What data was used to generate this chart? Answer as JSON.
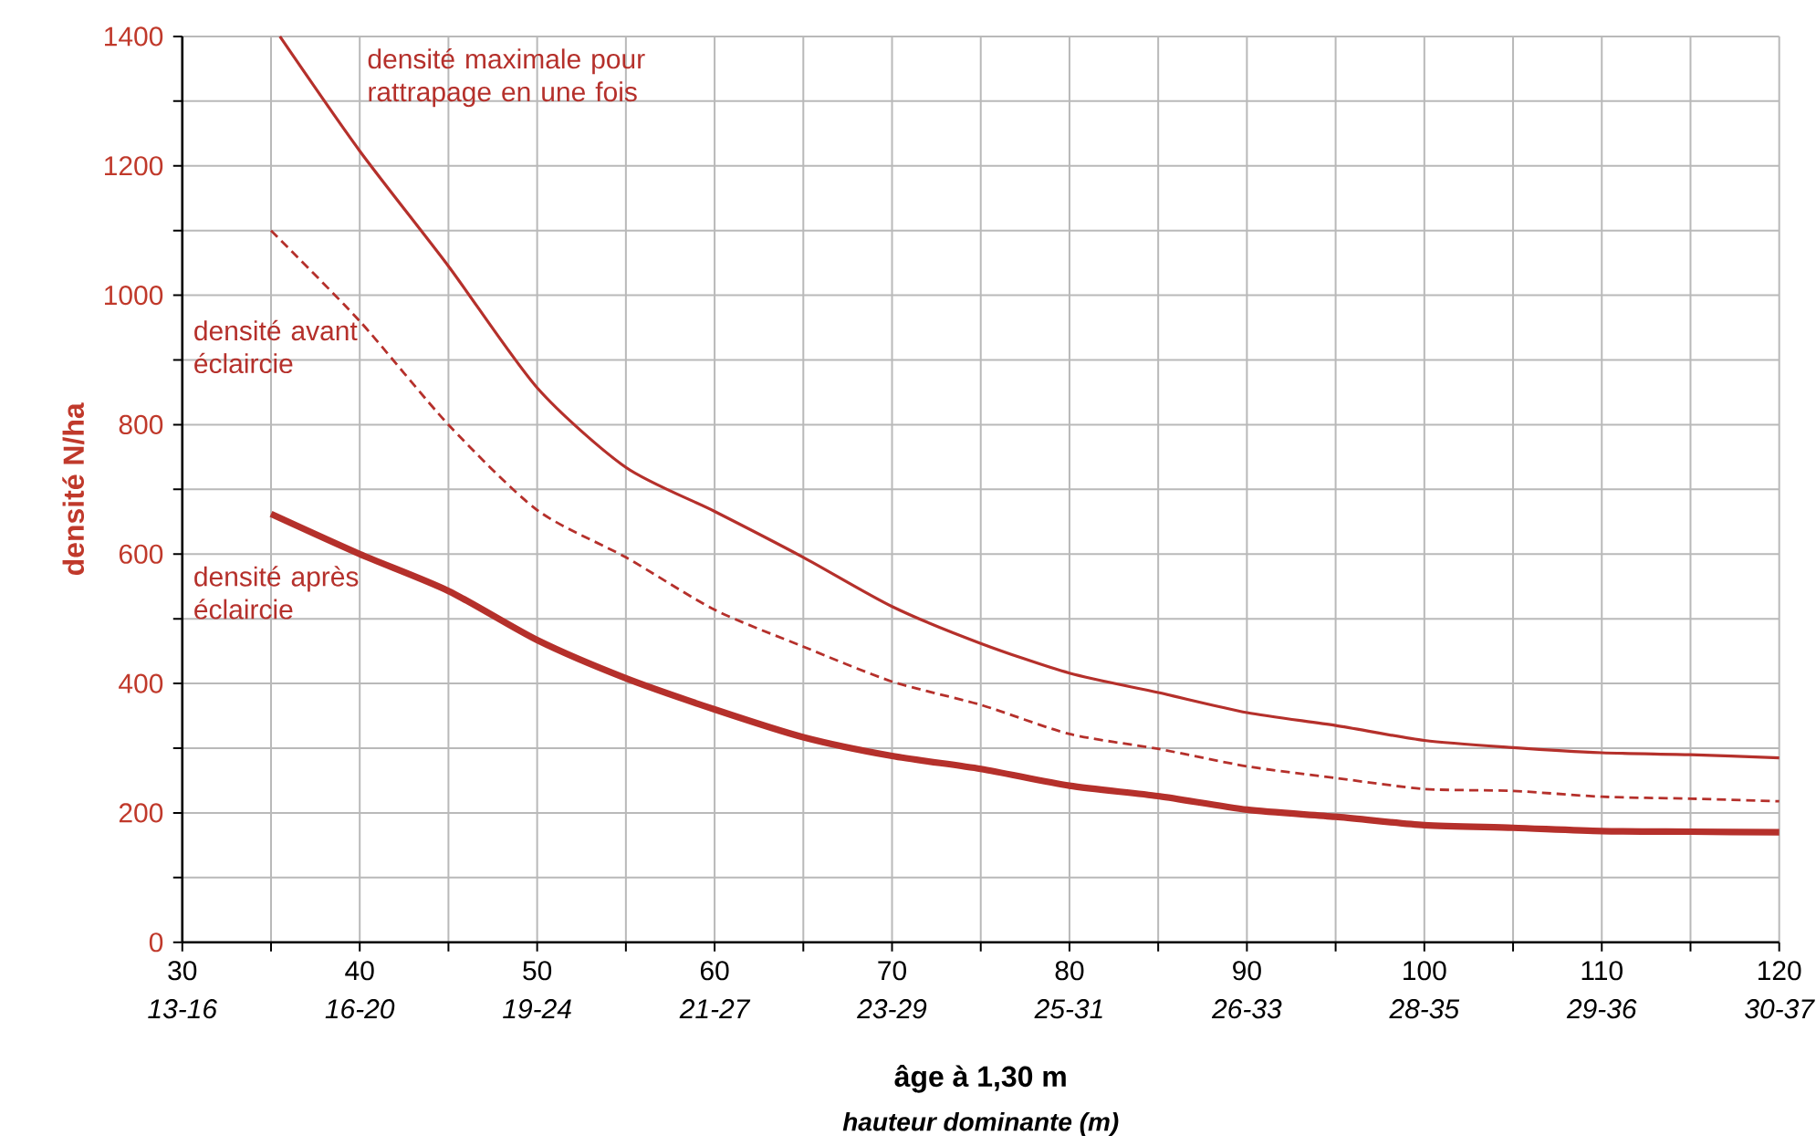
{
  "chart_data": {
    "type": "line",
    "xlabel": "âge à 1,30 m",
    "ylabel": "densité N/ha",
    "x2label": "hauteur dominante (m)",
    "xlim": [
      30,
      120
    ],
    "ylim": [
      0,
      1400
    ],
    "xticks": [
      30,
      {
        "value": 35,
        "label": null
      },
      40,
      {
        "value": 45,
        "label": null
      },
      50,
      {
        "value": 55,
        "label": null
      },
      60,
      {
        "value": 65,
        "label": null
      },
      70,
      {
        "value": 75,
        "label": null
      },
      80,
      {
        "value": 85,
        "label": null
      },
      90,
      {
        "value": 95,
        "label": null
      },
      100,
      {
        "value": 105,
        "label": null
      },
      110,
      {
        "value": 115,
        "label": null
      },
      120
    ],
    "yticks": [
      0,
      {
        "value": 100,
        "label": null
      },
      200,
      {
        "value": 300,
        "label": null
      },
      400,
      {
        "value": 500,
        "label": null
      },
      600,
      {
        "value": 700,
        "label": null
      },
      800,
      {
        "value": 900,
        "label": null
      },
      1000,
      {
        "value": 1100,
        "label": null
      },
      1200,
      {
        "value": 1300,
        "label": null
      },
      1400
    ],
    "annotations": [
      "13-16",
      "16-20",
      "19-24",
      "21-27",
      "23-29",
      "25-31",
      "26-33",
      "28-35",
      "29-36",
      "30-37"
    ],
    "grid": true,
    "series": [
      {
        "name": "densité maximale pour rattrapage en une fois",
        "color": "#b5302b",
        "line_style": "solid",
        "x": [
          35.5,
          40,
          45,
          50,
          55,
          60,
          65,
          70,
          75,
          80,
          85,
          90,
          95,
          100,
          105,
          110,
          115,
          120
        ],
        "values": [
          1400,
          1223,
          1045,
          857,
          734,
          666,
          595,
          519,
          462,
          416,
          386,
          355,
          335,
          312,
          301,
          293,
          290,
          285
        ]
      },
      {
        "name": "densité avant éclaircie",
        "color": "#b5302b",
        "line_style": "dashed",
        "x": [
          35,
          40,
          45,
          50,
          55,
          60,
          65,
          70,
          75,
          80,
          85,
          90,
          95,
          100,
          105,
          110,
          115,
          120
        ],
        "values": [
          1100,
          960,
          800,
          668,
          595,
          514,
          457,
          403,
          367,
          322,
          299,
          272,
          254,
          237,
          234,
          225,
          222,
          218
        ]
      },
      {
        "name": "densité après éclaircie",
        "color": "#b5302b",
        "line_style": "solid",
        "x": [
          35,
          40,
          45,
          50,
          55,
          60,
          65,
          70,
          75,
          80,
          85,
          90,
          95,
          100,
          105,
          110,
          115,
          120
        ],
        "values": [
          662,
          600,
          543,
          467,
          408,
          360,
          317,
          288,
          268,
          242,
          226,
          205,
          194,
          181,
          177,
          172,
          171,
          170
        ]
      }
    ]
  }
}
